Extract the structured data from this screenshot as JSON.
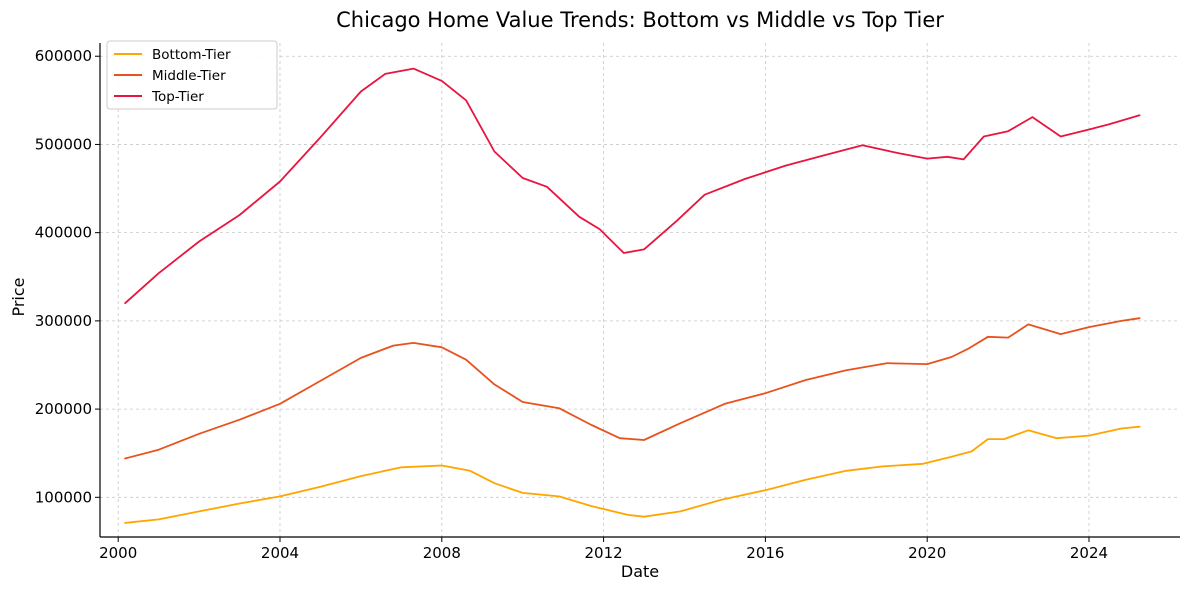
{
  "chart_data": {
    "type": "line",
    "title": "Chicago Home Value Trends: Bottom vs Middle vs Top Tier",
    "xlabel": "Date",
    "ylabel": "Price",
    "xlim": [
      1999.55,
      2026.25
    ],
    "ylim": [
      55000,
      615000
    ],
    "xticks": [
      2000,
      2004,
      2008,
      2012,
      2016,
      2020,
      2024
    ],
    "xtick_labels": [
      "2000",
      "2004",
      "2008",
      "2012",
      "2016",
      "2020",
      "2024"
    ],
    "yticks": [
      100000,
      200000,
      300000,
      400000,
      500000,
      600000
    ],
    "ytick_labels": [
      "100000",
      "200000",
      "300000",
      "400000",
      "500000",
      "600000"
    ],
    "grid": true,
    "legend_position": "top-left",
    "series": [
      {
        "name": "Bottom-Tier",
        "color": "#FFA500",
        "points": [
          [
            2000.17,
            71000
          ],
          [
            2001.0,
            75000
          ],
          [
            2002.0,
            84000
          ],
          [
            2003.0,
            93000
          ],
          [
            2004.0,
            101000
          ],
          [
            2005.0,
            112000
          ],
          [
            2006.0,
            124000
          ],
          [
            2007.0,
            134000
          ],
          [
            2008.0,
            136000
          ],
          [
            2008.7,
            130000
          ],
          [
            2009.3,
            116000
          ],
          [
            2010.0,
            105000
          ],
          [
            2010.9,
            101000
          ],
          [
            2011.7,
            90000
          ],
          [
            2012.6,
            80000
          ],
          [
            2013.0,
            78000
          ],
          [
            2013.9,
            84000
          ],
          [
            2014.9,
            97000
          ],
          [
            2016.0,
            108000
          ],
          [
            2017.0,
            120000
          ],
          [
            2018.0,
            130000
          ],
          [
            2018.9,
            135000
          ],
          [
            2019.9,
            138000
          ],
          [
            2020.6,
            146000
          ],
          [
            2021.1,
            152000
          ],
          [
            2021.5,
            166000
          ],
          [
            2021.9,
            166000
          ],
          [
            2022.5,
            176000
          ],
          [
            2023.2,
            167000
          ],
          [
            2024.0,
            170000
          ],
          [
            2024.8,
            178000
          ],
          [
            2025.25,
            180000
          ]
        ]
      },
      {
        "name": "Middle-Tier",
        "color": "#E8521C",
        "points": [
          [
            2000.17,
            144000
          ],
          [
            2001.0,
            154000
          ],
          [
            2002.0,
            172000
          ],
          [
            2003.0,
            188000
          ],
          [
            2004.0,
            206000
          ],
          [
            2005.0,
            232000
          ],
          [
            2006.0,
            258000
          ],
          [
            2006.8,
            272000
          ],
          [
            2007.3,
            275000
          ],
          [
            2008.0,
            270000
          ],
          [
            2008.6,
            256000
          ],
          [
            2009.3,
            228000
          ],
          [
            2010.0,
            208000
          ],
          [
            2010.9,
            201000
          ],
          [
            2011.7,
            182000
          ],
          [
            2012.4,
            167000
          ],
          [
            2013.0,
            165000
          ],
          [
            2013.9,
            184000
          ],
          [
            2015.0,
            206000
          ],
          [
            2016.0,
            218000
          ],
          [
            2017.0,
            233000
          ],
          [
            2018.0,
            244000
          ],
          [
            2019.0,
            252000
          ],
          [
            2020.0,
            251000
          ],
          [
            2020.6,
            259000
          ],
          [
            2021.0,
            268000
          ],
          [
            2021.5,
            282000
          ],
          [
            2022.0,
            281000
          ],
          [
            2022.5,
            296000
          ],
          [
            2023.3,
            285000
          ],
          [
            2024.0,
            293000
          ],
          [
            2024.8,
            300000
          ],
          [
            2025.25,
            303000
          ]
        ]
      },
      {
        "name": "Top-Tier",
        "color": "#E8153F",
        "points": [
          [
            2000.17,
            320000
          ],
          [
            2001.0,
            354000
          ],
          [
            2002.0,
            390000
          ],
          [
            2003.0,
            420000
          ],
          [
            2004.0,
            458000
          ],
          [
            2005.0,
            508000
          ],
          [
            2006.0,
            560000
          ],
          [
            2006.6,
            580000
          ],
          [
            2007.3,
            586000
          ],
          [
            2008.0,
            572000
          ],
          [
            2008.6,
            550000
          ],
          [
            2009.3,
            492000
          ],
          [
            2010.0,
            462000
          ],
          [
            2010.6,
            452000
          ],
          [
            2011.4,
            418000
          ],
          [
            2011.9,
            404000
          ],
          [
            2012.5,
            377000
          ],
          [
            2013.0,
            381000
          ],
          [
            2013.8,
            413000
          ],
          [
            2014.5,
            443000
          ],
          [
            2015.5,
            461000
          ],
          [
            2016.5,
            476000
          ],
          [
            2017.4,
            487000
          ],
          [
            2018.4,
            499000
          ],
          [
            2019.3,
            490000
          ],
          [
            2020.0,
            484000
          ],
          [
            2020.5,
            486000
          ],
          [
            2020.9,
            483000
          ],
          [
            2021.4,
            509000
          ],
          [
            2022.0,
            515000
          ],
          [
            2022.6,
            531000
          ],
          [
            2023.3,
            509000
          ],
          [
            2024.0,
            517000
          ],
          [
            2024.5,
            523000
          ],
          [
            2025.25,
            533000
          ]
        ]
      }
    ]
  }
}
